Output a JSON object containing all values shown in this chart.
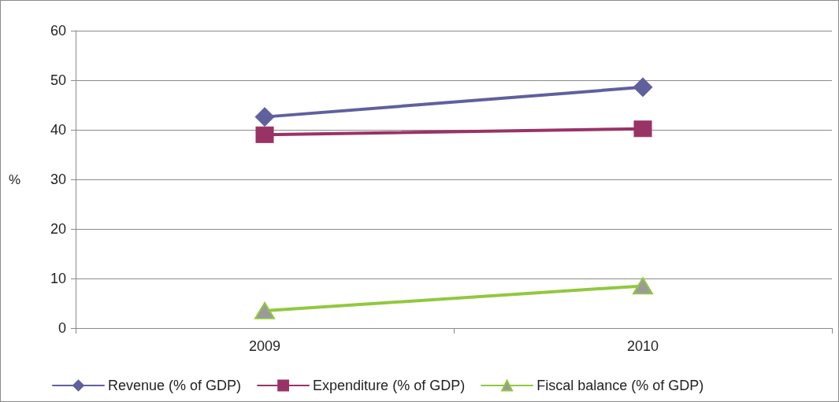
{
  "chart_data": {
    "type": "line",
    "categories": [
      "2009",
      "2010"
    ],
    "ylabel": "%",
    "series": [
      {
        "name": "Revenue (% of GDP)",
        "color": "#60609e",
        "marker": "diamond",
        "values": [
          42.6,
          48.6
        ]
      },
      {
        "name": "Expenditure (% of GDP)",
        "color": "#993366",
        "marker": "square",
        "values": [
          39.0,
          40.2
        ]
      },
      {
        "name": "Fiscal balance (% of GDP)",
        "color": "#92c83e",
        "marker": "triangle",
        "values": [
          3.5,
          8.5
        ]
      }
    ],
    "ylim": [
      0,
      60
    ],
    "yticks": [
      0,
      10,
      20,
      30,
      40,
      50,
      60
    ],
    "grid": "y",
    "legend": "bottom",
    "line_style": "solid"
  }
}
